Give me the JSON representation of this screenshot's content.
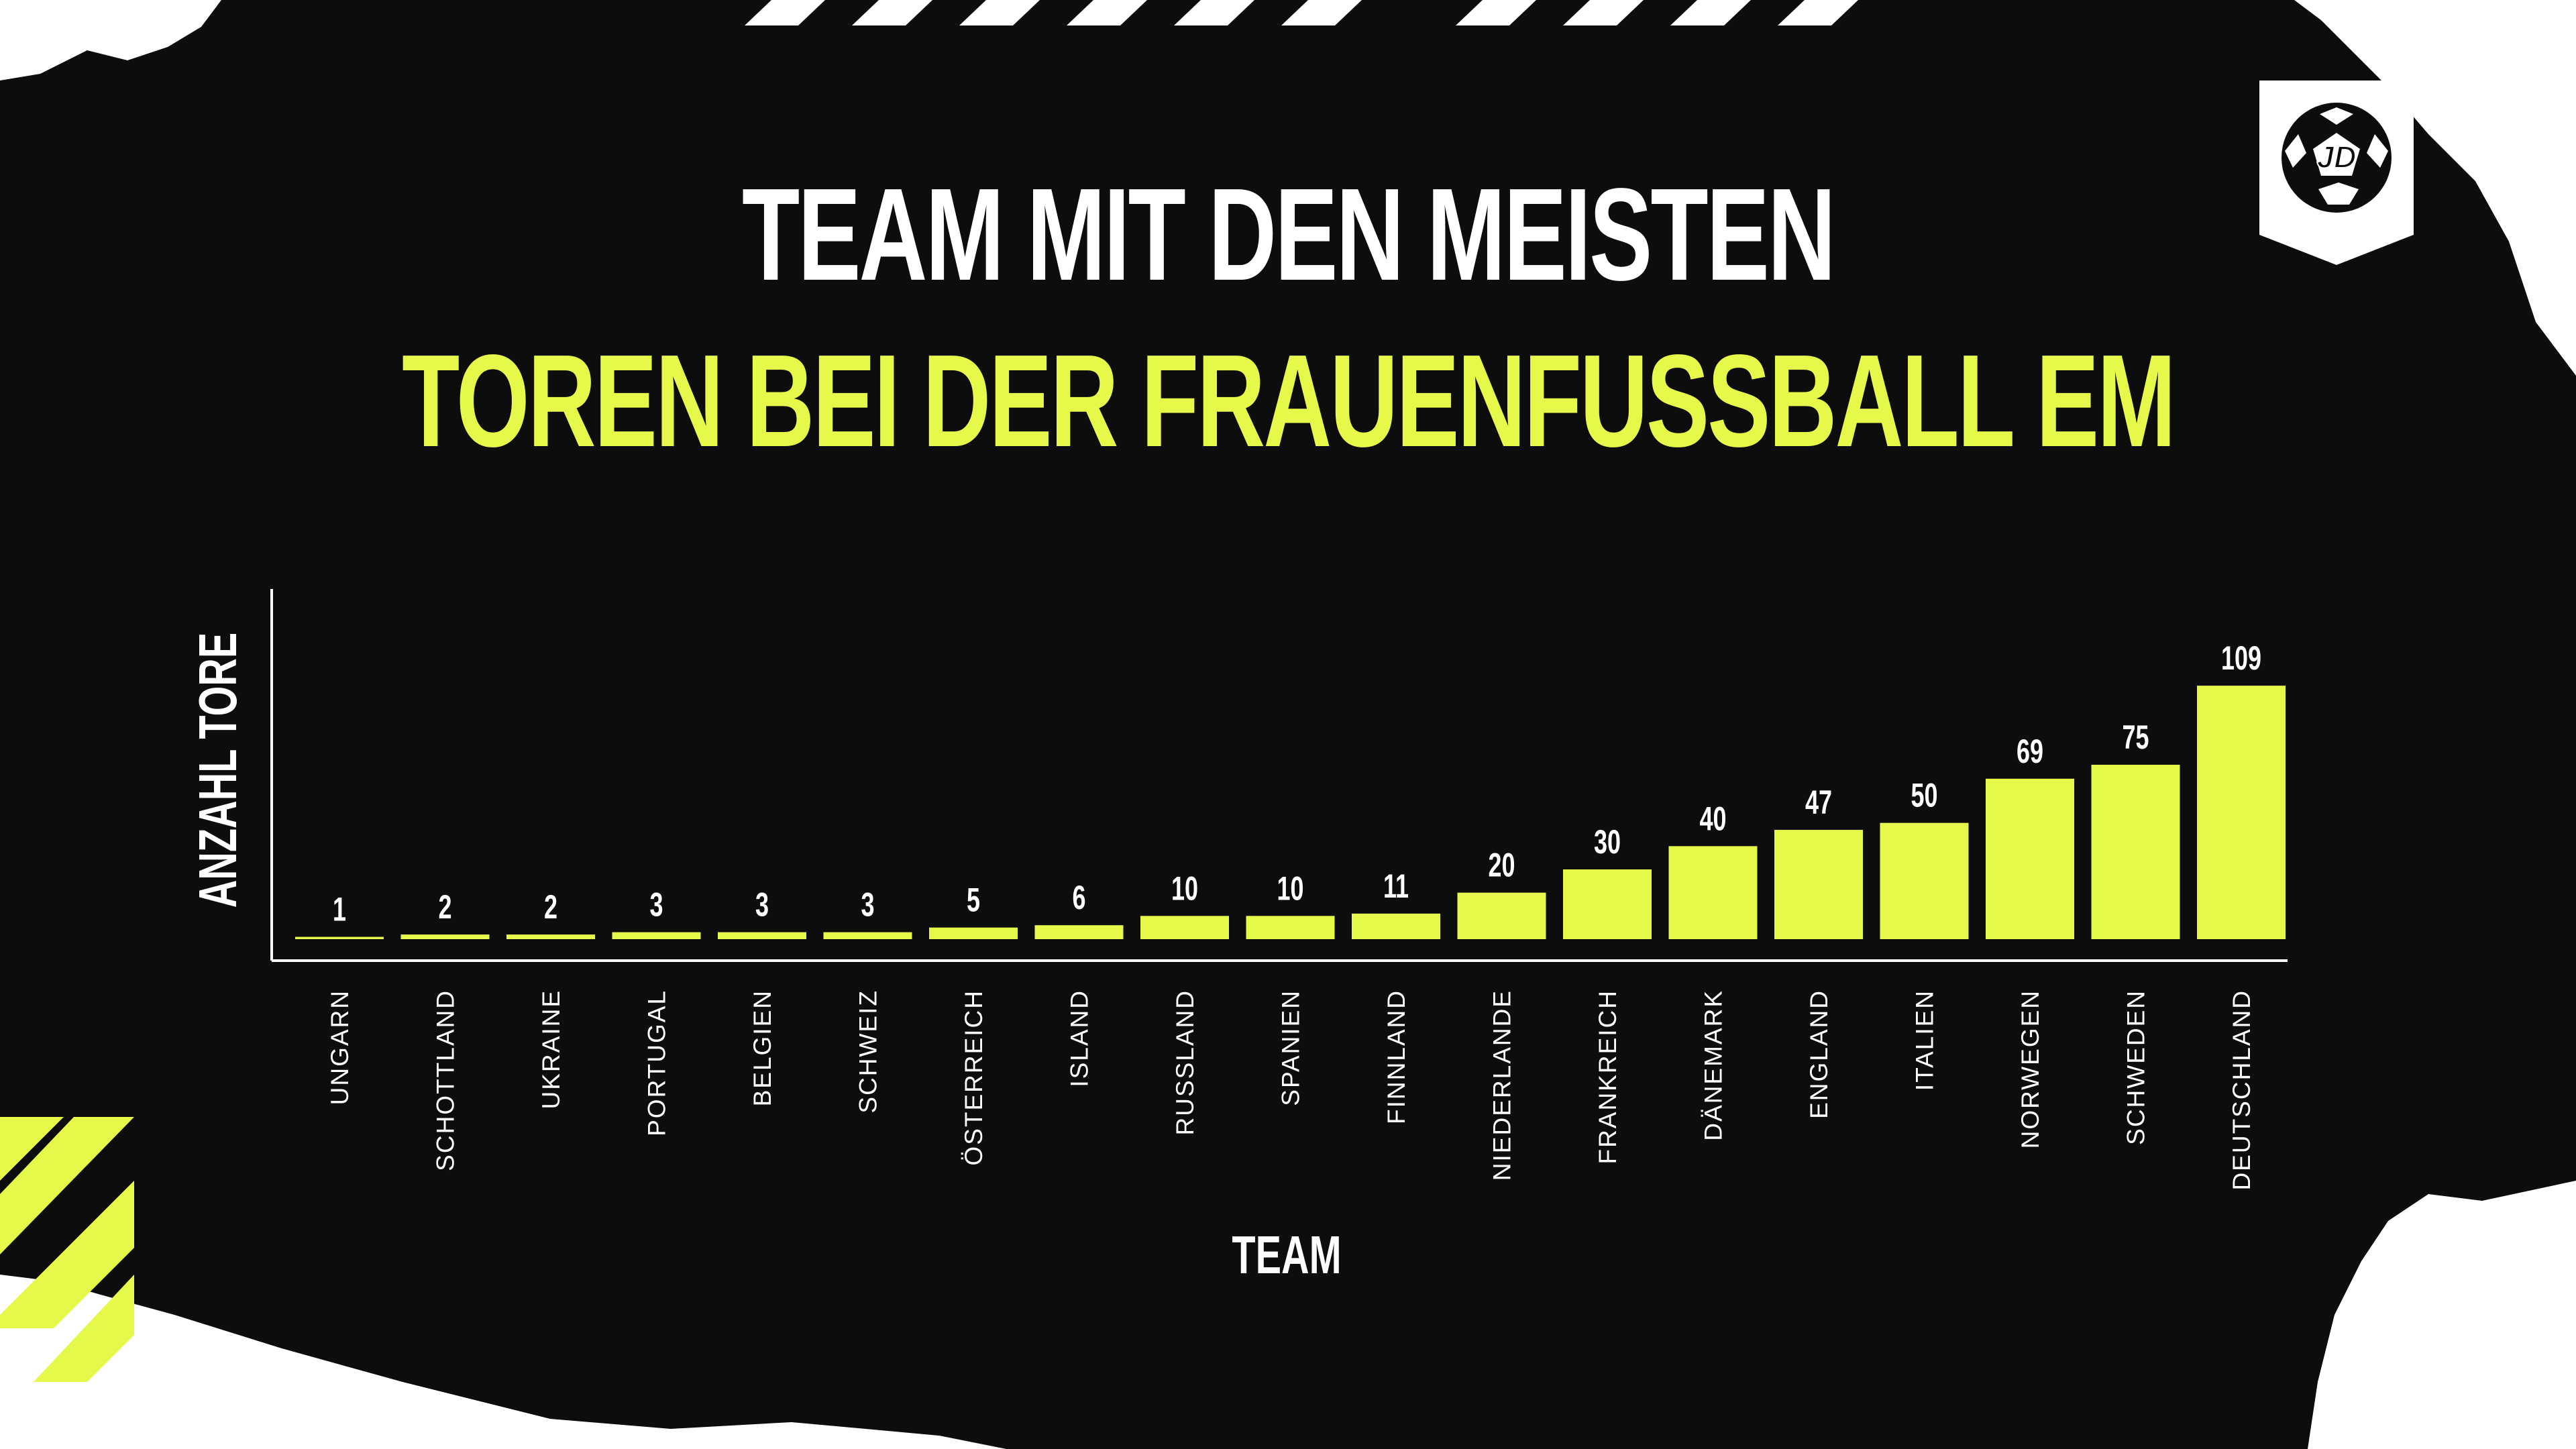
{
  "title": {
    "line1": "TEAM MIT DEN MEISTEN",
    "line2": "TOREN BEI DER FRAUENFUSSBALL EM"
  },
  "logo": {
    "text": "JD",
    "icon": "football-icon"
  },
  "colors": {
    "background": "#0d0d0d",
    "accent": "#e6f84a",
    "text": "#ffffff",
    "paper": "#ffffff"
  },
  "chart_data": {
    "type": "bar",
    "categories": [
      "UNGARN",
      "SCHOTTLAND",
      "UKRAINE",
      "PORTUGAL",
      "BELGIEN",
      "SCHWEIZ",
      "ÖSTERREICH",
      "ISLAND",
      "RUSSLAND",
      "SPANIEN",
      "FINNLAND",
      "NIEDERLANDE",
      "FRANKREICH",
      "DÄNEMARK",
      "ENGLAND",
      "ITALIEN",
      "NORWEGEN",
      "SCHWEDEN",
      "DEUTSCHLAND"
    ],
    "values": [
      1,
      2,
      2,
      3,
      3,
      3,
      5,
      6,
      10,
      10,
      11,
      20,
      30,
      40,
      47,
      50,
      69,
      75,
      109
    ],
    "xlabel": "TEAM",
    "ylabel": "ANZAHL TORE",
    "ylim": [
      0,
      150
    ],
    "grid": false,
    "data_labels": true
  }
}
